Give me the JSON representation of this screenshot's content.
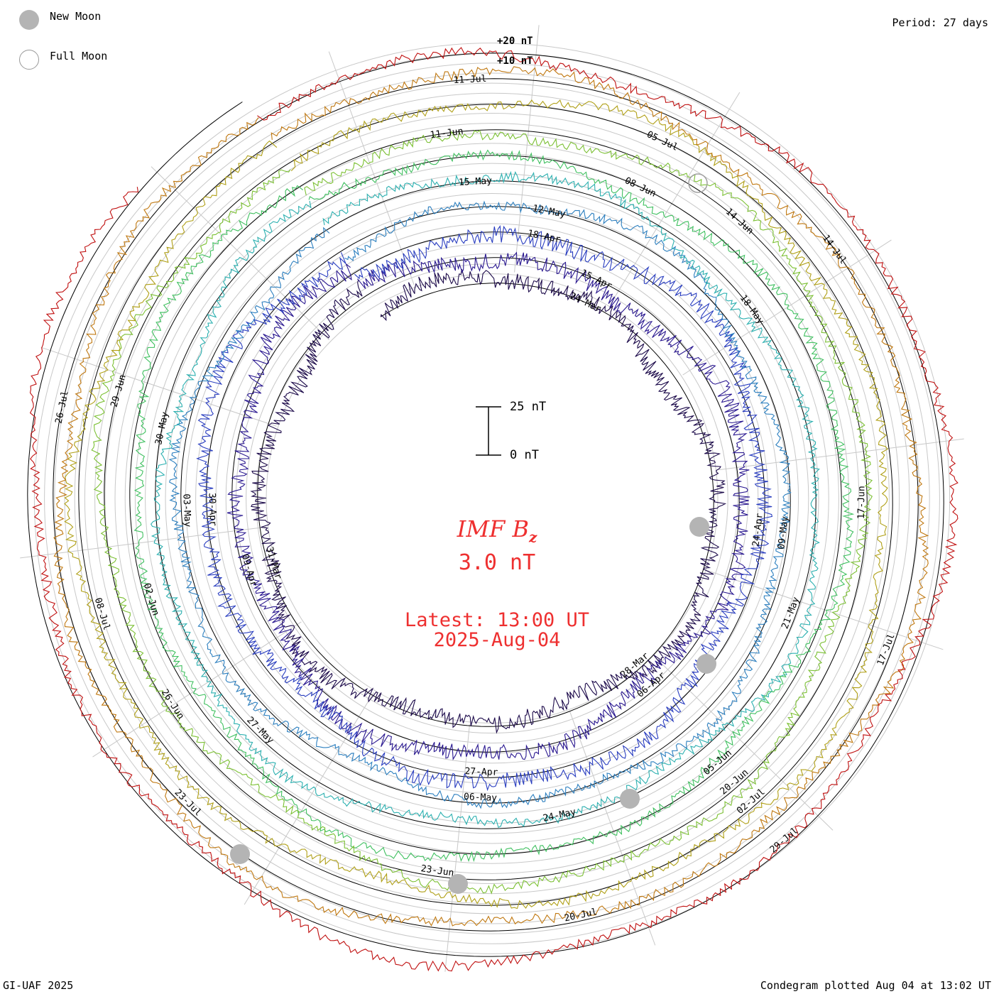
{
  "header": {
    "legend": [
      {
        "label": "New Moon",
        "color": "#b4b4b4"
      },
      {
        "label": "Full Moon",
        "color": "#ffffff"
      }
    ],
    "period_text": "Period: 27 days"
  },
  "footer": {
    "credit": "GI-UAF 2025",
    "plotted_text": "Condegram plotted Aug 04 at 13:02 UT"
  },
  "center": {
    "quantity_name": "IMF B",
    "quantity_subscript": "z",
    "current_value": "3.0 nT",
    "latest_time": "Latest: 13:00 UT",
    "latest_date": "2025-Aug-04",
    "scale_top_label": "25 nT",
    "scale_bottom_label": "0 nT"
  },
  "chart_data": {
    "type": "line",
    "layout": "condegram spiral (polar, 27-day rotations)",
    "period_days": 27,
    "units": "nT",
    "title": "IMF Bz",
    "outer_ring_labels": [
      "+20 nT",
      "+10 nT"
    ],
    "grid": true,
    "rotations": [
      {
        "index": 0,
        "color": "#1c0a4a",
        "date_labels": [
          "24-Mar",
          "28-Mar",
          "31-Mar"
        ]
      },
      {
        "index": 1,
        "color": "#2a1890",
        "date_labels": [
          "15-Apr",
          "06-Apr",
          "09-Apr"
        ]
      },
      {
        "index": 2,
        "color": "#2a3ec0",
        "date_labels": [
          "18-Apr",
          "24-Apr",
          "27-Apr",
          "30-Apr"
        ]
      },
      {
        "index": 3,
        "color": "#2c7fbf",
        "date_labels": [
          "12-May",
          "09-May",
          "06-May",
          "03-May"
        ]
      },
      {
        "index": 4,
        "color": "#2cb0b0",
        "date_labels": [
          "15-May",
          "18-May",
          "21-May",
          "24-May",
          "27-May",
          "30-May"
        ]
      },
      {
        "index": 5,
        "color": "#40c060",
        "date_labels": [
          "08-Jun",
          "05-Jun",
          "02-Jun"
        ]
      },
      {
        "index": 6,
        "color": "#7cc034",
        "date_labels": [
          "11-Jun",
          "14-Jun",
          "17-Jun",
          "20-Jun",
          "23-Jun",
          "26-Jun",
          "29-Jun"
        ]
      },
      {
        "index": 7,
        "color": "#b0a018",
        "date_labels": [
          "05-Jul",
          "02-Jul",
          "08-Jul"
        ]
      },
      {
        "index": 8,
        "color": "#c07810",
        "date_labels": [
          "11-Jul",
          "14-Jul",
          "17-Jul",
          "20-Jul",
          "23-Jul",
          "26-Jul"
        ]
      },
      {
        "index": 9,
        "color": "#c01010",
        "date_labels": [
          "29-Jul"
        ]
      }
    ],
    "new_moons": [
      {
        "date": "2025-03-29"
      },
      {
        "date": "2025-04-27"
      },
      {
        "date": "2025-05-27"
      },
      {
        "date": "2025-06-25"
      },
      {
        "date": "2025-07-24"
      }
    ],
    "full_moons": [
      {
        "date": "2025-07-10"
      }
    ],
    "latest_value": 3.0,
    "latest_time": "2025-08-04 13:00 UT"
  }
}
